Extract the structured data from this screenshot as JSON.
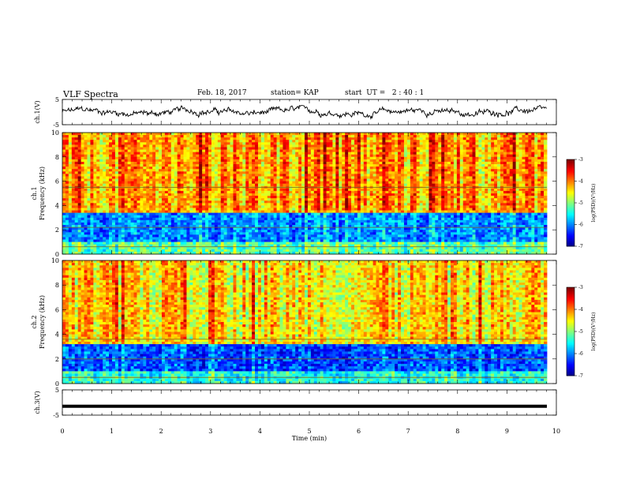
{
  "header": {
    "title": "VLF Spectra",
    "date": "Feb. 18, 2017",
    "station": "station= KAP",
    "start": "start  UT =   2 : 40 : 1"
  },
  "chart_data": [
    {
      "type": "line",
      "ylabel": "ch.1(V)",
      "ylim": [
        -5,
        5
      ],
      "yticks": [
        "5",
        "-5"
      ],
      "xlim": [
        0,
        10
      ],
      "description_level": "noisy waveform fluctuating roughly between -2 and 2 V over 0-9.8 min"
    },
    {
      "type": "heatmap",
      "ylabel": "ch.1\nFrequency (kHz)",
      "ylim": [
        0,
        10
      ],
      "yticks": [
        "0",
        "2",
        "4",
        "6",
        "8",
        "10"
      ],
      "xlim": [
        0,
        10
      ],
      "colorbar": {
        "label": "log(PSD)(V²/Hz)",
        "ticks": [
          "-3",
          "-4",
          "-5",
          "-6",
          "-7"
        ],
        "range": [
          -7,
          -3
        ]
      },
      "bands": [
        {
          "from_khz": 0.0,
          "to_khz": 1.0,
          "level": -5.2
        },
        {
          "from_khz": 1.0,
          "to_khz": 3.5,
          "level": -6.0
        },
        {
          "from_khz": 3.5,
          "to_khz": 10.0,
          "level": -4.2
        }
      ],
      "lines_khz": [
        5.5,
        2.2,
        0.6
      ]
    },
    {
      "type": "heatmap",
      "ylabel": "ch.2\nFrequency (kHz)",
      "ylim": [
        0,
        10
      ],
      "yticks": [
        "0",
        "2",
        "4",
        "6",
        "8",
        "10"
      ],
      "xlim": [
        0,
        10
      ],
      "colorbar": {
        "label": "log(PSD)(V²/Hz)",
        "ticks": [
          "-3",
          "-4",
          "-5",
          "-6",
          "-7"
        ],
        "range": [
          -7,
          -3
        ]
      },
      "bands": [
        {
          "from_khz": 0.0,
          "to_khz": 1.0,
          "level": -5.4
        },
        {
          "from_khz": 1.0,
          "to_khz": 3.3,
          "level": -6.2
        },
        {
          "from_khz": 3.3,
          "to_khz": 10.0,
          "level": -4.4
        }
      ],
      "lines_khz": [
        3.6,
        2.0,
        0.5
      ]
    },
    {
      "type": "line",
      "ylabel": "ch.3(V)",
      "ylim": [
        -5,
        5
      ],
      "yticks": [
        "5",
        "-5"
      ],
      "xlim": [
        0,
        10
      ],
      "value": -1.5
    }
  ],
  "xaxis": {
    "label": "Time (min)",
    "ticks": [
      "0",
      "1",
      "2",
      "3",
      "4",
      "5",
      "6",
      "7",
      "8",
      "9",
      "10"
    ]
  }
}
